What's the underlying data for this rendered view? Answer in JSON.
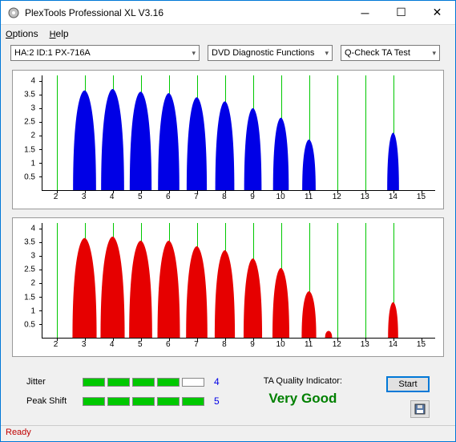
{
  "window": {
    "title": "PlexTools Professional XL V3.16"
  },
  "menu": {
    "options": "Options",
    "help": "Help"
  },
  "toolbar": {
    "device": "HA:2 ID:1  PX-716A",
    "mode": "DVD Diagnostic Functions",
    "test": "Q-Check TA Test"
  },
  "charts": {
    "ylabels": [
      "4",
      "3.5",
      "3",
      "2.5",
      "2",
      "1.5",
      "1",
      "0.5"
    ],
    "ymax": 4.2,
    "xlabels": [
      "2",
      "3",
      "4",
      "5",
      "6",
      "7",
      "8",
      "9",
      "10",
      "11",
      "12",
      "13",
      "14",
      "15"
    ],
    "xmin": 1.5,
    "xmax": 15.5,
    "top": {
      "color": "#0000e6",
      "peaks": [
        {
          "c": 3,
          "h": 3.65,
          "w": 0.82
        },
        {
          "c": 4,
          "h": 3.7,
          "w": 0.82
        },
        {
          "c": 5,
          "h": 3.6,
          "w": 0.78
        },
        {
          "c": 6,
          "h": 3.55,
          "w": 0.76
        },
        {
          "c": 7,
          "h": 3.4,
          "w": 0.72
        },
        {
          "c": 8,
          "h": 3.25,
          "w": 0.68
        },
        {
          "c": 9,
          "h": 3.0,
          "w": 0.62
        },
        {
          "c": 10,
          "h": 2.65,
          "w": 0.56
        },
        {
          "c": 11,
          "h": 1.85,
          "w": 0.48
        },
        {
          "c": 14,
          "h": 2.1,
          "w": 0.42
        }
      ]
    },
    "bottom": {
      "color": "#e60000",
      "peaks": [
        {
          "c": 3,
          "h": 3.65,
          "w": 0.86
        },
        {
          "c": 4,
          "h": 3.7,
          "w": 0.86
        },
        {
          "c": 5,
          "h": 3.55,
          "w": 0.82
        },
        {
          "c": 6,
          "h": 3.55,
          "w": 0.8
        },
        {
          "c": 7,
          "h": 3.35,
          "w": 0.76
        },
        {
          "c": 8,
          "h": 3.2,
          "w": 0.72
        },
        {
          "c": 9,
          "h": 2.9,
          "w": 0.66
        },
        {
          "c": 10,
          "h": 2.55,
          "w": 0.6
        },
        {
          "c": 11,
          "h": 1.7,
          "w": 0.52
        },
        {
          "c": 11.7,
          "h": 0.25,
          "w": 0.25
        },
        {
          "c": 14,
          "h": 1.3,
          "w": 0.36
        }
      ]
    }
  },
  "indicators": {
    "jitter": {
      "label": "Jitter",
      "value": "4",
      "filled": 4,
      "total": 5
    },
    "peakshift": {
      "label": "Peak Shift",
      "value": "5",
      "filled": 5,
      "total": 5
    },
    "ta_label": "TA Quality Indicator:",
    "ta_value": "Very Good"
  },
  "buttons": {
    "start": "Start"
  },
  "status": {
    "text": "Ready"
  }
}
